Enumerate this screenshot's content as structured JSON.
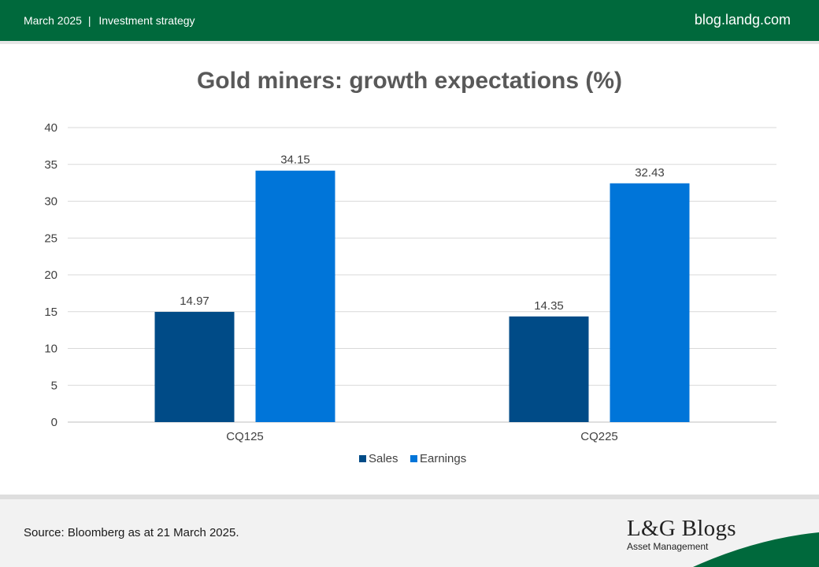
{
  "header": {
    "date": "March 2025",
    "separator": "|",
    "section": "Investment strategy",
    "site": "blog.landg.com",
    "bg_color": "#00693c"
  },
  "chart_data": {
    "type": "bar",
    "title": "Gold miners: growth expectations (%)",
    "categories": [
      "CQ125",
      "CQ225"
    ],
    "series": [
      {
        "name": "Sales",
        "values": [
          14.97,
          14.35
        ],
        "color": "#004b87"
      },
      {
        "name": "Earnings",
        "values": [
          34.15,
          32.43
        ],
        "color": "#0075d9"
      }
    ],
    "data_labels": [
      [
        "14.97",
        "14.35"
      ],
      [
        "34.15",
        "32.43"
      ]
    ],
    "ylim": [
      0,
      40
    ],
    "yticks": [
      0,
      5,
      10,
      15,
      20,
      25,
      30,
      35,
      40
    ],
    "grid": true,
    "legend": "bottom-center",
    "xlabel": "",
    "ylabel": ""
  },
  "footer": {
    "source": "Source: Bloomberg as at 21 March 2025.",
    "brand_name": "L&G Blogs",
    "brand_sub": "Asset Management",
    "swoosh_color": "#00693c"
  }
}
